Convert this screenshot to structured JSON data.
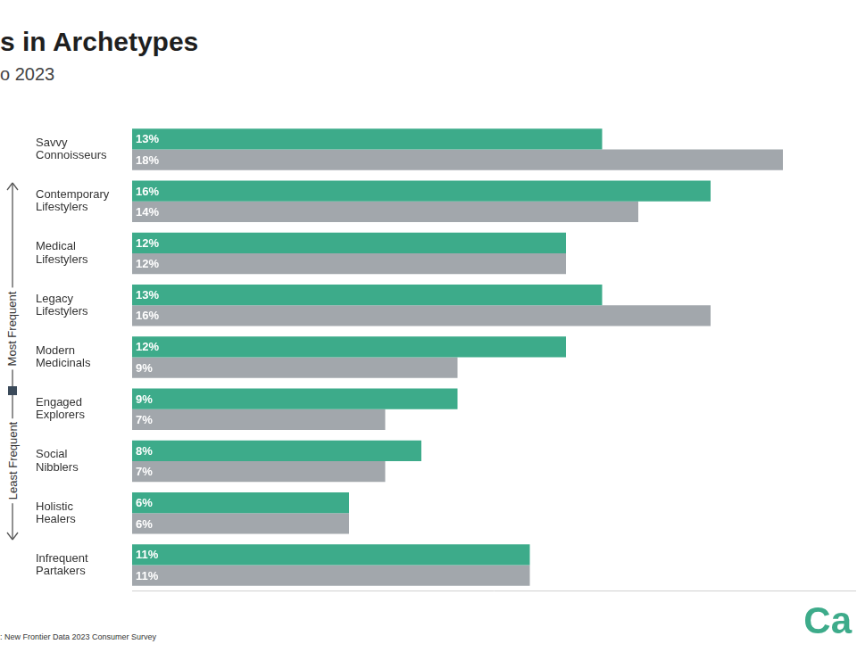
{
  "chart_data": {
    "type": "bar",
    "orientation": "horizontal",
    "title": "s in Archetypes",
    "subtitle": "o 2023",
    "source": ": New Frontier Data 2023 Consumer Survey",
    "logo": "Ca",
    "annotations": [
      "Most Frequent",
      "Least Frequent"
    ],
    "categories": [
      "Savvy Connoisseurs",
      "Contemporary Lifestylers",
      "Medical Lifestylers",
      "Legacy Lifestylers",
      "Modern Medicinals",
      "Engaged Explorers",
      "Social Nibblers",
      "Holistic Healers",
      "Infrequent Partakers"
    ],
    "series": [
      {
        "color": "#3dab8a",
        "values": [
          13,
          16,
          12,
          13,
          12,
          9,
          8,
          6,
          11
        ],
        "value_labels": [
          "13%",
          "16%",
          "12%",
          "13%",
          "12%",
          "9%",
          "8%",
          "6%",
          "11%"
        ]
      },
      {
        "color": "#a2a7ac",
        "values": [
          18,
          14,
          12,
          16,
          9,
          7,
          7,
          6,
          11
        ],
        "value_labels": [
          "18%",
          "14%",
          "12%",
          "16%",
          "9%",
          "7%",
          "7%",
          "6%",
          "11%"
        ]
      }
    ],
    "xlim": [
      0,
      20
    ],
    "grid": false,
    "data_labels": true,
    "tick_labels": "y"
  }
}
